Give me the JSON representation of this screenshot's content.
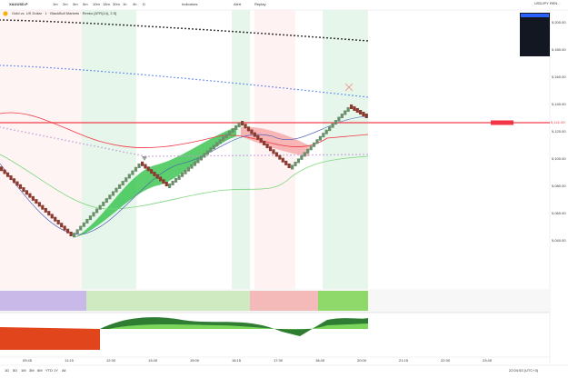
{
  "header": {
    "symbol": "XAUUSD.P",
    "timeframes": [
      "1m",
      "2m",
      "3m",
      "5m",
      "10m",
      "15m",
      "30m",
      "1h",
      "4h",
      "D"
    ],
    "indicators": "Indicators",
    "alert": "Alert",
    "replay": "Replay",
    "watch": "USDJPY REN..."
  },
  "legend": {
    "title": "Gold vs. US Dollar · 1 · BlackBull Markets · Renko [ATR(14), 2.5]"
  },
  "price_axis": [
    "5,200.00",
    "5,180.00",
    "5,160.00",
    "5,140.00",
    "5,120.00",
    "5,100.00",
    "5,080.00",
    "5,060.00",
    "5,040.00"
  ],
  "last_price": "5,141.00",
  "time_axis": [
    "09:45",
    "11:15",
    "12:30",
    "13:45",
    "15:00",
    "16:15",
    "17:30",
    "18:45",
    "20:00",
    "21:15",
    "22:30",
    "23:45"
  ],
  "footer": {
    "ranges": [
      "1D",
      "5D",
      "1M",
      "3M",
      "6M",
      "YTD",
      "1Y",
      "All"
    ],
    "clock": "22:04:53 (UTC+3)"
  }
}
